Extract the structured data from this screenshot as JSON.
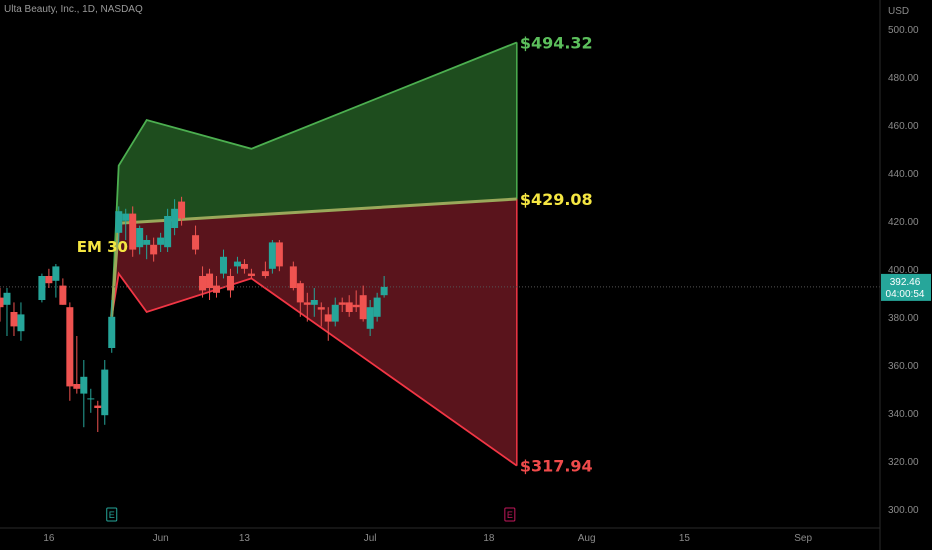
{
  "title": "Ulta Beauty, Inc., 1D, NASDAQ",
  "chart_data": {
    "type": "candlestick",
    "currency_label": "USD",
    "ylim": [
      292,
      512
    ],
    "y_ticks": [
      "500.00",
      "480.00",
      "460.00",
      "440.00",
      "420.00",
      "400.00",
      "380.00",
      "360.00",
      "340.00",
      "320.00",
      "300.00"
    ],
    "x_ticks": [
      {
        "label": "16",
        "day": 0
      },
      {
        "label": "Jun",
        "day": 16
      },
      {
        "label": "13",
        "day": 28
      },
      {
        "label": "Jul",
        "day": 46
      },
      {
        "label": "18",
        "day": 63
      },
      {
        "label": "Aug",
        "day": 77
      },
      {
        "label": "15",
        "day": 91
      },
      {
        "label": "Sep",
        "day": 108
      }
    ],
    "x_range": [
      -7,
      119
    ],
    "current_price": {
      "label": "392.46",
      "countdown": "04:00:54",
      "value": 392.46,
      "color": "#26a69a"
    },
    "candles": [
      {
        "d": -7,
        "o": 388,
        "h": 392,
        "l": 378,
        "c": 384
      },
      {
        "d": -6,
        "o": 385,
        "h": 392,
        "l": 372,
        "c": 390
      },
      {
        "d": -5,
        "o": 382,
        "h": 386,
        "l": 372,
        "c": 376
      },
      {
        "d": -4,
        "o": 374,
        "h": 386,
        "l": 370,
        "c": 381
      },
      {
        "d": -1,
        "o": 387,
        "h": 398,
        "l": 386,
        "c": 397
      },
      {
        "d": 0,
        "o": 397,
        "h": 400,
        "l": 392,
        "c": 394
      },
      {
        "d": 1,
        "o": 395,
        "h": 402,
        "l": 388,
        "c": 401
      },
      {
        "d": 2,
        "o": 393,
        "h": 396,
        "l": 385,
        "c": 385
      },
      {
        "d": 3,
        "o": 384,
        "h": 386,
        "l": 345,
        "c": 351
      },
      {
        "d": 4,
        "o": 352,
        "h": 372,
        "l": 348,
        "c": 350
      },
      {
        "d": 5,
        "o": 348,
        "h": 362,
        "l": 334,
        "c": 355
      },
      {
        "d": 6,
        "o": 346,
        "h": 350,
        "l": 340,
        "c": 346
      },
      {
        "d": 7,
        "o": 343,
        "h": 345,
        "l": 332,
        "c": 342
      },
      {
        "d": 8,
        "o": 339,
        "h": 362,
        "l": 335,
        "c": 358
      },
      {
        "d": 9,
        "o": 367,
        "h": 387,
        "l": 365,
        "c": 380
      },
      {
        "d": 10,
        "o": 415,
        "h": 426,
        "l": 410,
        "c": 424
      },
      {
        "d": 11,
        "o": 420,
        "h": 425,
        "l": 412,
        "c": 423
      },
      {
        "d": 12,
        "o": 423,
        "h": 426,
        "l": 405,
        "c": 408
      },
      {
        "d": 13,
        "o": 409,
        "h": 418,
        "l": 406,
        "c": 417
      },
      {
        "d": 14,
        "o": 410,
        "h": 414,
        "l": 404,
        "c": 412
      },
      {
        "d": 15,
        "o": 410,
        "h": 413,
        "l": 403,
        "c": 406
      },
      {
        "d": 16,
        "o": 410,
        "h": 415,
        "l": 407,
        "c": 413
      },
      {
        "d": 17,
        "o": 409,
        "h": 425,
        "l": 407,
        "c": 422
      },
      {
        "d": 18,
        "o": 417,
        "h": 429,
        "l": 414,
        "c": 425
      },
      {
        "d": 19,
        "o": 428,
        "h": 430,
        "l": 418,
        "c": 421
      },
      {
        "d": 21,
        "o": 414,
        "h": 418,
        "l": 406,
        "c": 408
      },
      {
        "d": 22,
        "o": 397,
        "h": 401,
        "l": 388,
        "c": 391
      },
      {
        "d": 23,
        "o": 398,
        "h": 400,
        "l": 387,
        "c": 392
      },
      {
        "d": 24,
        "o": 393,
        "h": 397,
        "l": 388,
        "c": 390
      },
      {
        "d": 25,
        "o": 398,
        "h": 408,
        "l": 396,
        "c": 405
      },
      {
        "d": 26,
        "o": 397,
        "h": 400,
        "l": 388,
        "c": 391
      },
      {
        "d": 27,
        "o": 401,
        "h": 405,
        "l": 398,
        "c": 403
      },
      {
        "d": 28,
        "o": 402,
        "h": 404,
        "l": 398,
        "c": 400
      },
      {
        "d": 29,
        "o": 398,
        "h": 400,
        "l": 396,
        "c": 397
      },
      {
        "d": 31,
        "o": 399,
        "h": 403,
        "l": 396,
        "c": 397
      },
      {
        "d": 32,
        "o": 400,
        "h": 412,
        "l": 398,
        "c": 411
      },
      {
        "d": 33,
        "o": 411,
        "h": 412,
        "l": 399,
        "c": 401
      },
      {
        "d": 35,
        "o": 401,
        "h": 403,
        "l": 391,
        "c": 392
      },
      {
        "d": 36,
        "o": 394,
        "h": 395,
        "l": 380,
        "c": 386
      },
      {
        "d": 37,
        "o": 386,
        "h": 390,
        "l": 378,
        "c": 385
      },
      {
        "d": 38,
        "o": 385,
        "h": 392,
        "l": 380,
        "c": 387
      },
      {
        "d": 39,
        "o": 384,
        "h": 386,
        "l": 376,
        "c": 383
      },
      {
        "d": 40,
        "o": 381,
        "h": 384,
        "l": 370,
        "c": 378
      },
      {
        "d": 41,
        "o": 378,
        "h": 388,
        "l": 376,
        "c": 385
      },
      {
        "d": 42,
        "o": 386,
        "h": 388,
        "l": 382,
        "c": 385
      },
      {
        "d": 43,
        "o": 386,
        "h": 389,
        "l": 380,
        "c": 382
      },
      {
        "d": 44,
        "o": 385,
        "h": 391,
        "l": 382,
        "c": 384
      },
      {
        "d": 45,
        "o": 389,
        "h": 393,
        "l": 378,
        "c": 379
      },
      {
        "d": 46,
        "o": 375,
        "h": 387,
        "l": 372,
        "c": 384
      },
      {
        "d": 47,
        "o": 380,
        "h": 390,
        "l": 378,
        "c": 388
      },
      {
        "d": 48,
        "o": 389,
        "h": 397,
        "l": 388,
        "c": 392.46
      }
    ],
    "expected_move": {
      "label": "EM 30",
      "label_color": "#f5e642",
      "upper_band": [
        [
          9,
          380
        ],
        [
          10,
          443
        ],
        [
          14,
          462
        ],
        [
          29,
          450
        ],
        [
          67,
          494.32
        ]
      ],
      "mid_band": [
        [
          9,
          380
        ],
        [
          10,
          419
        ],
        [
          67,
          429.08
        ]
      ],
      "lower_band": [
        [
          9,
          380
        ],
        [
          10,
          398
        ],
        [
          14,
          382
        ],
        [
          29,
          396
        ],
        [
          67,
          317.94
        ]
      ],
      "levels": [
        {
          "label": "$494.32",
          "value": 494.32,
          "color": "#5cbf5c"
        },
        {
          "label": "$429.08",
          "value": 429.08,
          "color": "#f5e642"
        },
        {
          "label": "$317.94",
          "value": 317.94,
          "color": "#ef4b4b"
        }
      ],
      "upper_fill": "#1e4d1e",
      "lower_fill": "#5a141c",
      "upper_line": "#4caf50",
      "mid_line": "#9aa85a",
      "lower_line": "#f23645"
    },
    "earnings_markers": [
      {
        "label": "E",
        "day": 9,
        "color": "#26a69a"
      },
      {
        "label": "E",
        "day": 66,
        "color": "#c2185b"
      }
    ],
    "colors": {
      "up": "#26a69a",
      "down": "#ef5350"
    }
  }
}
